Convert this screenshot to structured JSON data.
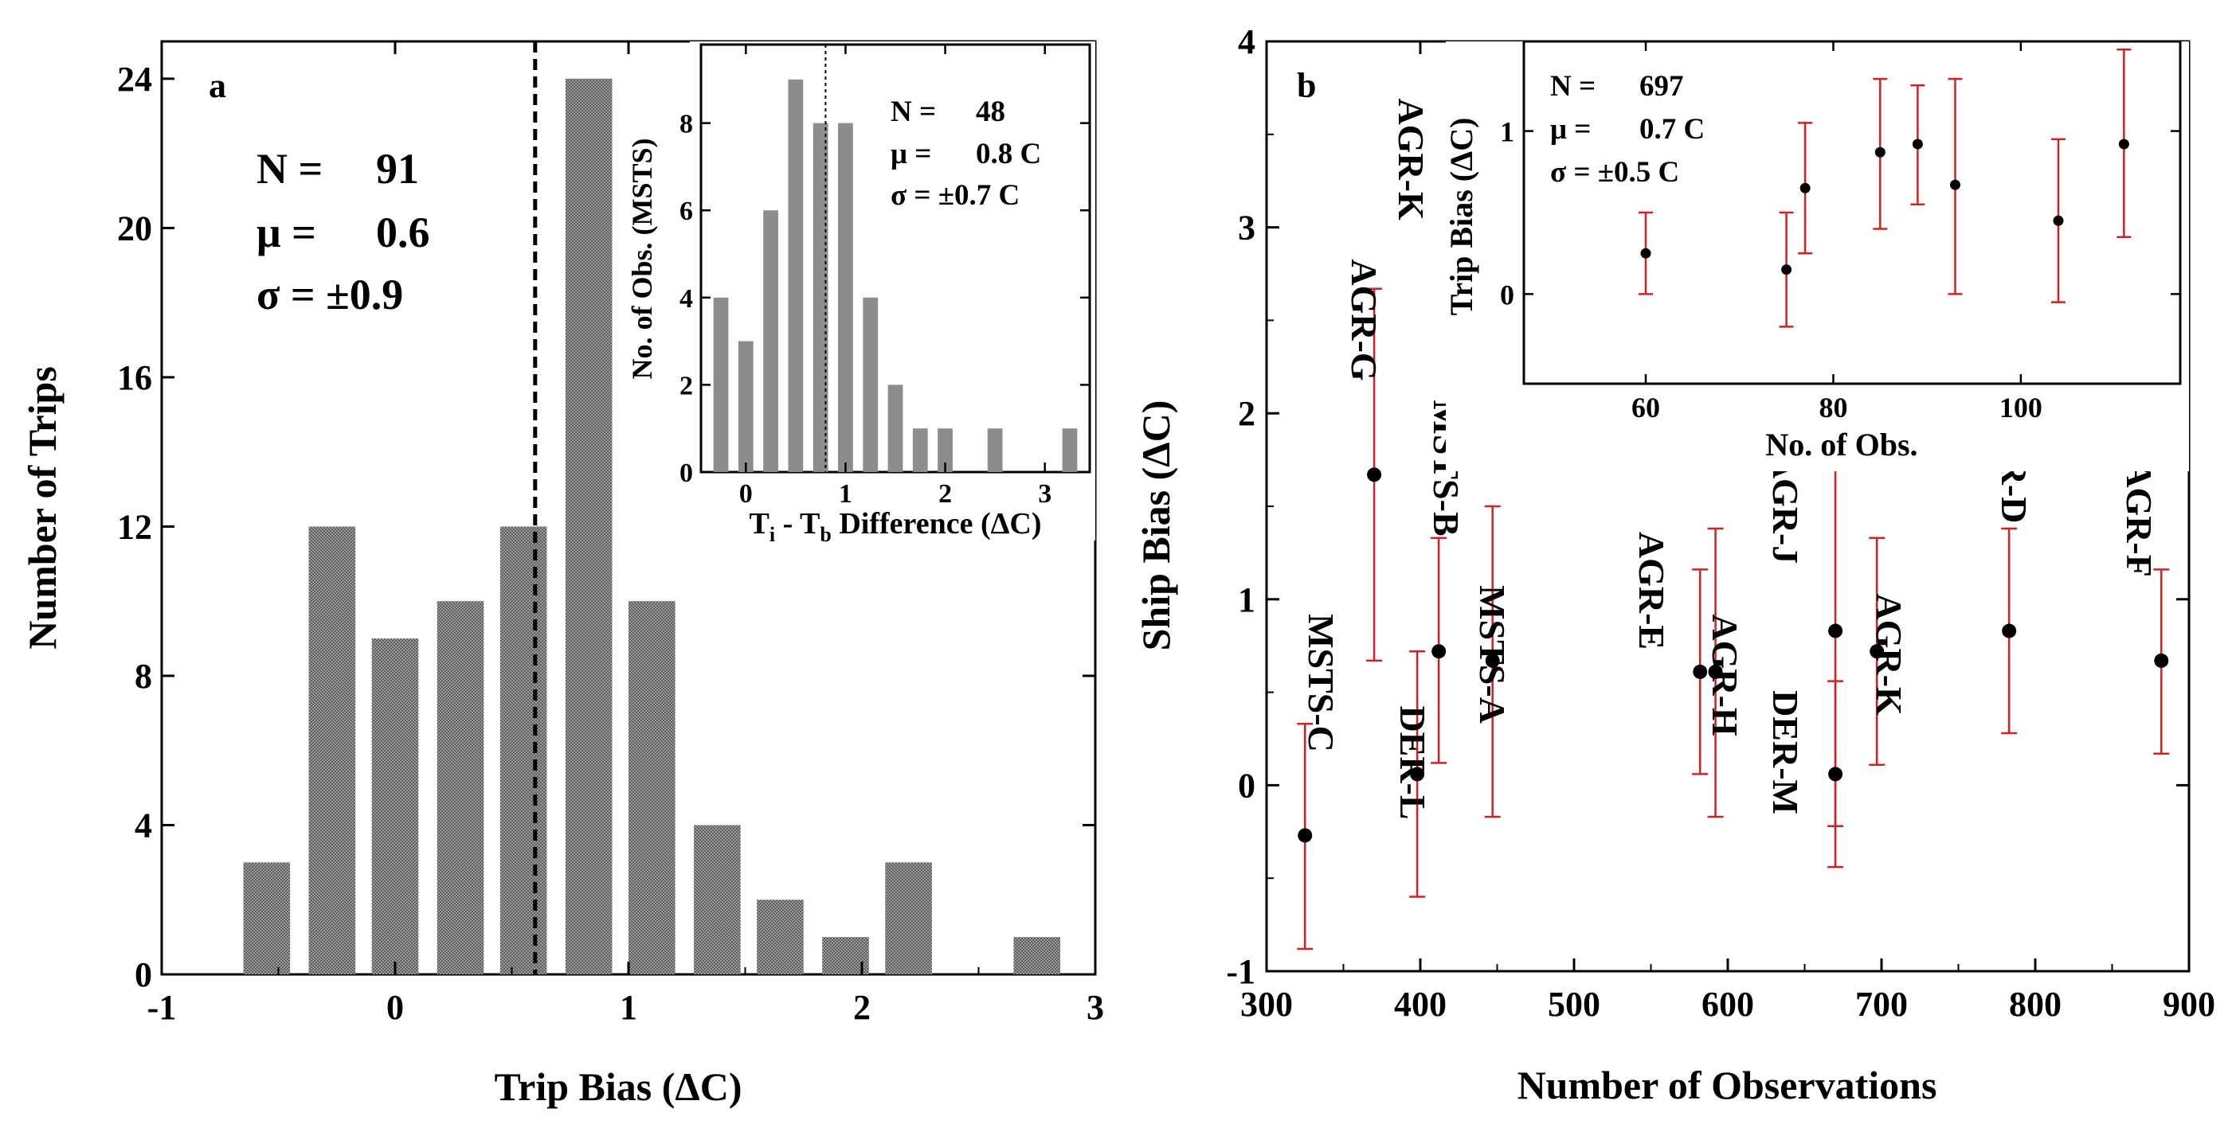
{
  "chart_data": [
    {
      "panel": "a",
      "type": "bar",
      "panel_label": "a",
      "xlabel": "Trip Bias (ΔC)",
      "ylabel": "Number of Trips",
      "xlim": [
        -1,
        3
      ],
      "ylim": [
        0,
        25
      ],
      "xticks": [
        -1,
        0,
        1,
        2,
        3
      ],
      "yticks": [
        0,
        4,
        8,
        12,
        16,
        20,
        24
      ],
      "x": [
        -0.55,
        -0.27,
        0.0,
        0.28,
        0.55,
        0.83,
        1.1,
        1.38,
        1.65,
        1.93,
        2.2,
        2.75
      ],
      "values": [
        3,
        12,
        9,
        10,
        12,
        24,
        10,
        4,
        2,
        1,
        3,
        1
      ],
      "mean_line": 0.6,
      "stats": [
        {
          "label": "N =",
          "value": "91"
        },
        {
          "label": "μ =",
          "value": "0.6"
        },
        {
          "label": "σ = ±0.9",
          "value": ""
        }
      ],
      "inset": {
        "type": "bar",
        "xlabel_parts": [
          "T",
          "i",
          " - T",
          "b",
          " Difference (ΔC)"
        ],
        "ylabel": "No. of Obs. (MSTS)",
        "xlim": [
          -0.45,
          3.45
        ],
        "ylim": [
          0,
          9.8
        ],
        "xticks": [
          0,
          1,
          2,
          3
        ],
        "yticks": [
          0,
          2,
          4,
          6,
          8
        ],
        "x": [
          -0.25,
          0.0,
          0.25,
          0.5,
          0.75,
          1.0,
          1.25,
          1.5,
          1.75,
          2.0,
          2.5,
          3.25
        ],
        "values": [
          4,
          3,
          6,
          9,
          8,
          8,
          4,
          2,
          1,
          1,
          1,
          1
        ],
        "mean_line": 0.8,
        "stats": [
          {
            "label": "N =",
            "value": "48"
          },
          {
            "label": "μ =",
            "value": "0.8 C"
          },
          {
            "label": "σ = ±0.7 C",
            "value": ""
          }
        ]
      }
    },
    {
      "panel": "b",
      "type": "scatter",
      "panel_label": "b",
      "xlabel": "Number of Observations",
      "ylabel": "Ship Bias (ΔC)",
      "xlim": [
        300,
        900
      ],
      "ylim": [
        -1,
        4
      ],
      "xticks": [
        300,
        400,
        500,
        600,
        700,
        800,
        900
      ],
      "yticks": [
        -1,
        0,
        1,
        2,
        3,
        4
      ],
      "points": [
        {
          "label": "MSTS-C",
          "x": 325,
          "y": -0.27,
          "lo": -0.88,
          "hi": 0.33
        },
        {
          "label": "AGR-G",
          "x": 370,
          "y": 1.67,
          "lo": 0.67,
          "hi": 2.67
        },
        {
          "label": "DER-L",
          "x": 398,
          "y": 0.06,
          "lo": -0.6,
          "hi": 0.72
        },
        {
          "label": "MSTS-B",
          "x": 412,
          "y": 0.72,
          "lo": 0.12,
          "hi": 1.33
        },
        {
          "label": "MSTS-A",
          "x": 447,
          "y": 0.67,
          "lo": -0.17,
          "hi": 1.5
        },
        {
          "label": "AGR-E",
          "x": 582,
          "y": 0.61,
          "lo": 0.06,
          "hi": 1.16
        },
        {
          "label": "AGR-H",
          "x": 592,
          "y": 0.61,
          "lo": -0.17,
          "hi": 1.38
        },
        {
          "label": "AGR-J",
          "x": 670,
          "y": 0.83,
          "lo": -0.22,
          "hi": 1.88
        },
        {
          "label": "DER-M",
          "x": 670,
          "y": 0.06,
          "lo": -0.44,
          "hi": 0.56
        },
        {
          "label": "AGR-K",
          "x": 697,
          "y": 0.72,
          "lo": 0.11,
          "hi": 1.33
        },
        {
          "label": "AGR-D",
          "x": 783,
          "y": 0.83,
          "lo": 0.28,
          "hi": 1.38
        },
        {
          "label": "AGR-F",
          "x": 882,
          "y": 0.67,
          "lo": 0.17,
          "hi": 1.16
        }
      ],
      "extra_label": "AGR-K",
      "inset": {
        "type": "scatter",
        "xlabel": "No. of Obs.",
        "ylabel": "Trip Bias (ΔC)",
        "xlim": [
          47,
          117
        ],
        "ylim": [
          -0.55,
          1.55
        ],
        "xticks": [
          60,
          80,
          100
        ],
        "yticks": [
          0,
          1
        ],
        "points": [
          {
            "x": 60,
            "y": 0.25,
            "lo": 0.0,
            "hi": 0.5
          },
          {
            "x": 75,
            "y": 0.15,
            "lo": -0.2,
            "hi": 0.5
          },
          {
            "x": 77,
            "y": 0.65,
            "lo": 0.25,
            "hi": 1.05
          },
          {
            "x": 85,
            "y": 0.87,
            "lo": 0.4,
            "hi": 1.32
          },
          {
            "x": 89,
            "y": 0.92,
            "lo": 0.55,
            "hi": 1.28
          },
          {
            "x": 93,
            "y": 0.67,
            "lo": 0.0,
            "hi": 1.32
          },
          {
            "x": 104,
            "y": 0.45,
            "lo": -0.05,
            "hi": 0.95
          },
          {
            "x": 111,
            "y": 0.92,
            "lo": 0.35,
            "hi": 1.5
          }
        ],
        "stats": [
          {
            "label": "N =",
            "value": "697"
          },
          {
            "label": "μ =",
            "value": "0.7 C"
          },
          {
            "label": "σ = ±0.5 C",
            "value": ""
          }
        ]
      }
    }
  ],
  "colors": {
    "bar_fill": "#8c8c8c",
    "error_bar": "#d42020",
    "marker": "#000000",
    "axis": "#000000"
  }
}
